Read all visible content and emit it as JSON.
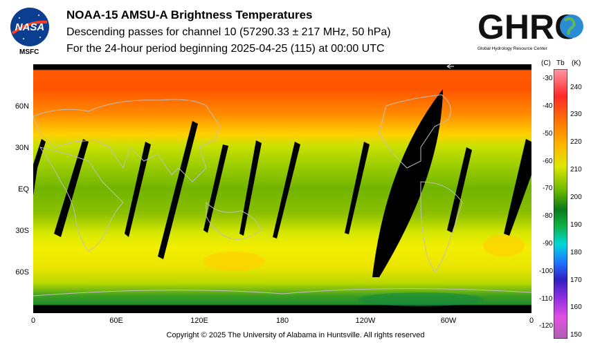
{
  "header": {
    "title": "NOAA-15 AMSU-A Brightness Temperatures",
    "subtitle1": "Descending passes for channel 10 (57290.33 ± 217 MHz, 50 hPa)",
    "subtitle2": "For the 24-hour period beginning 2025-04-25 (115) at 00:00 UTC"
  },
  "logos": {
    "nasa_text": "NASA",
    "msfc": "MSFC",
    "ghrc_text": "GHRC",
    "ghrc_sub": "Global Hydrology Resource Center"
  },
  "map": {
    "lat_labels": [
      "60N",
      "30N",
      "EQ",
      "30S",
      "60S"
    ],
    "lon_labels": [
      "0",
      "60E",
      "120E",
      "180",
      "120W",
      "60W",
      "0"
    ]
  },
  "colorbar": {
    "unit_c": "(C)",
    "unit_tb": "Tb",
    "unit_k": "(K)",
    "celsius_ticks": [
      "-30",
      "-40",
      "-50",
      "-60",
      "-70",
      "-80",
      "-90",
      "-100",
      "-110",
      "-120"
    ],
    "kelvin_ticks": [
      "240",
      "230",
      "220",
      "210",
      "200",
      "190",
      "180",
      "170",
      "160",
      "150"
    ]
  },
  "footer": {
    "copyright": "Copyright © 2025 The University of Alabama in Huntsville.  All rights reserved"
  }
}
